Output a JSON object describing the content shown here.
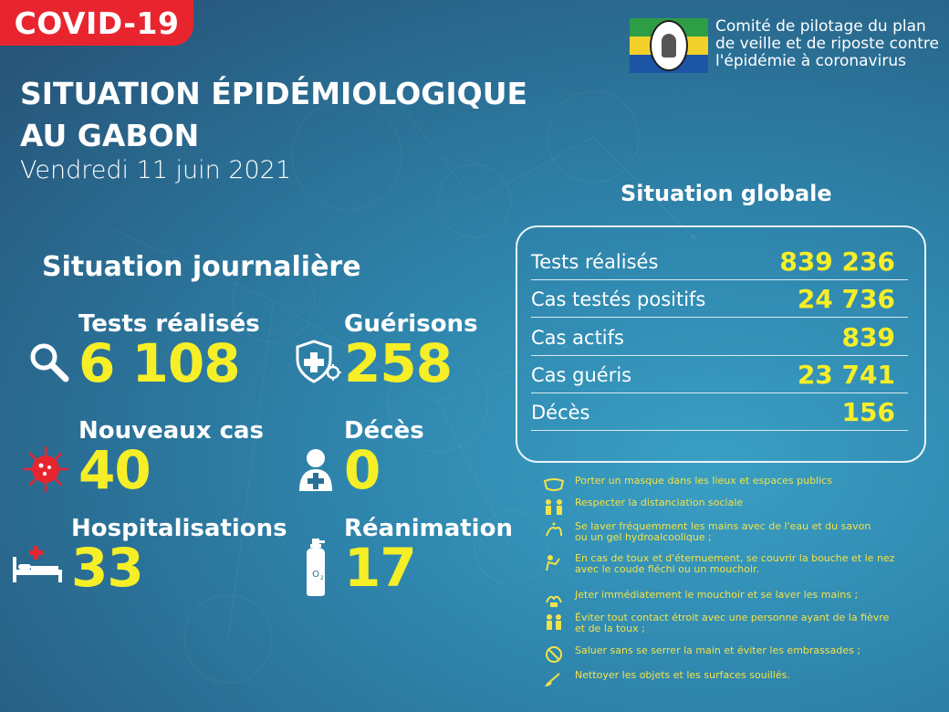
{
  "badge": {
    "label": "COVID-19"
  },
  "title": {
    "line1": "SITUATION ÉPIDÉMIOLOGIQUE",
    "line2": "AU GABON"
  },
  "date": "Vendredi 11 juin 2021",
  "header_org": {
    "line1": "Comité de pilotage du plan",
    "line2": "de veille et de riposte contre",
    "line3": "l'épidémie à coronavirus"
  },
  "daily": {
    "title": "Situation journalière",
    "items": [
      {
        "label": "Tests réalisés",
        "value": "6 108",
        "icon": "magnifier-icon"
      },
      {
        "label": "Guérisons",
        "value": "258",
        "icon": "shield-cross-virus-icon"
      },
      {
        "label": "Nouveaux cas",
        "value": "40",
        "icon": "virus-icon"
      },
      {
        "label": "Décès",
        "value": "0",
        "icon": "person-cross-icon"
      },
      {
        "label": "Hospitalisations",
        "value": "33",
        "icon": "hospital-bed-icon"
      },
      {
        "label": "Réanimation",
        "value": "17",
        "icon": "oxygen-tank-icon"
      }
    ]
  },
  "global": {
    "title": "Situation globale",
    "rows": [
      {
        "label": "Tests réalisés",
        "value": "839 236"
      },
      {
        "label": "Cas testés positifs",
        "value": "24 736"
      },
      {
        "label": "Cas actifs",
        "value": "839"
      },
      {
        "label": "Cas guéris",
        "value": "23 741"
      },
      {
        "label": "Décès",
        "value": "156"
      }
    ]
  },
  "tips": [
    {
      "icon": "mask-icon",
      "line1": "Porter un masque dans les lieux et espaces publics",
      "line2": ""
    },
    {
      "icon": "distance-icon",
      "line1": "Respecter la distanciation sociale",
      "line2": ""
    },
    {
      "icon": "handwash-icon",
      "line1": "Se laver fréquemment les mains avec de l'eau et du savon",
      "line2": " ou un gel hydroalcoolique ;"
    },
    {
      "icon": "cough-elbow-icon",
      "line1": "En cas de toux et d'éternuement, se couvrir la bouche et le nez",
      "line2": " avec le coude fléchi ou un mouchoir."
    },
    {
      "icon": "tissue-icon",
      "line1": "Jeter immédiatement le mouchoir et se laver les mains ;",
      "line2": ""
    },
    {
      "icon": "avoid-contact-icon",
      "line1": "Éviter tout contact étroit avec une personne ayant de la fièvre",
      "line2": " et de la toux ;"
    },
    {
      "icon": "no-handshake-icon",
      "line1": "Saluer sans se serrer la main et éviter les embrassades ;",
      "line2": ""
    },
    {
      "icon": "cleaning-icon",
      "line1": "Nettoyer les objets et les surfaces souillés.",
      "line2": ""
    }
  ],
  "colors": {
    "accent_red": "#e8252f",
    "value_yellow": "#f6ef27",
    "tip_yellow": "#f2e34a"
  }
}
